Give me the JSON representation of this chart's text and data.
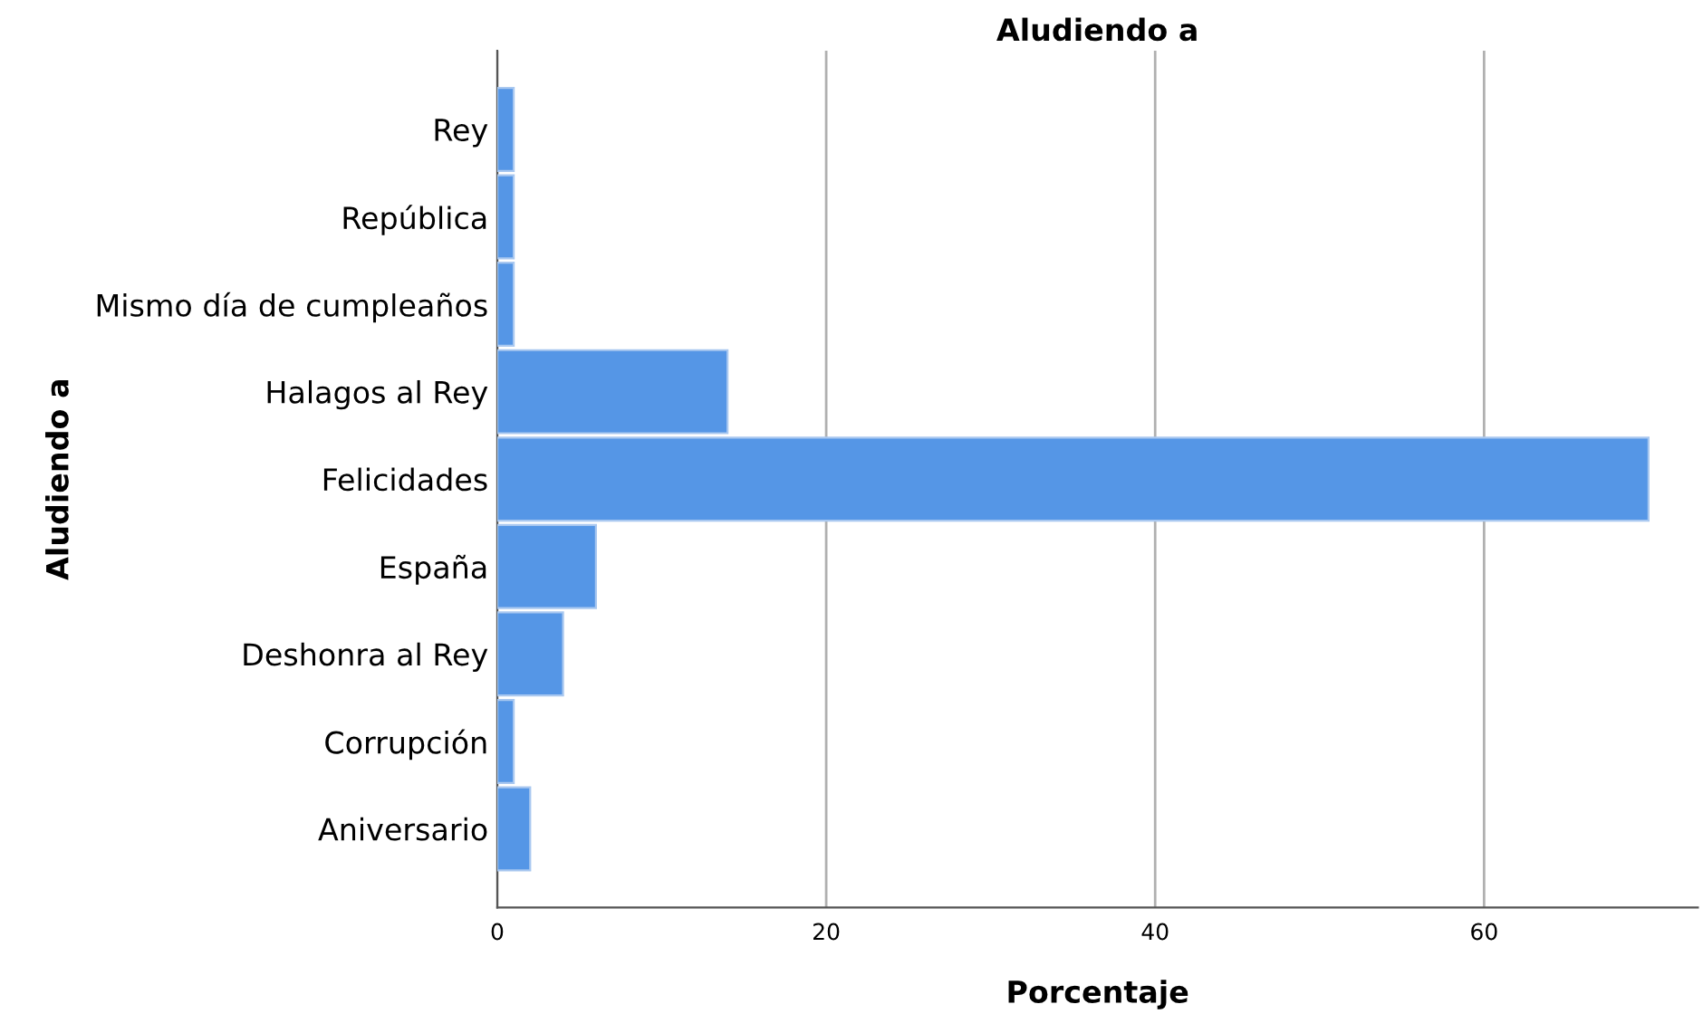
{
  "chart_data": {
    "type": "bar",
    "orientation": "horizontal",
    "title": "Aludiendo a",
    "xlabel": "Porcentaje",
    "ylabel": "Aludiendo a",
    "categories": [
      "Rey",
      "República",
      "Mismo día de cumpleaños",
      "Halagos al Rey",
      "Felicidades",
      "España",
      "Deshonra al Rey",
      "Corrupción",
      "Aniversario"
    ],
    "values": [
      1,
      1,
      1,
      14,
      70,
      6,
      4,
      1,
      2
    ],
    "color": "#5596e6",
    "xlim": [
      0,
      73
    ],
    "xticks": [
      0,
      20,
      40,
      60
    ],
    "grid": "x",
    "legend": false
  }
}
